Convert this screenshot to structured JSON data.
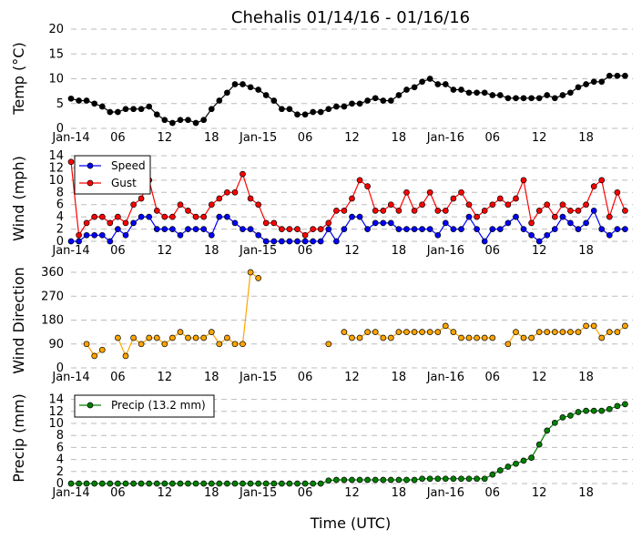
{
  "title": "Chehalis 01/14/16 - 01/16/16",
  "xlabel": "Time (UTC)",
  "x_tick_labels": [
    "Jan-14",
    "06",
    "12",
    "18",
    "Jan-15",
    "06",
    "12",
    "18",
    "Jan-16",
    "06",
    "12",
    "18"
  ],
  "chart_data": [
    {
      "type": "line",
      "ylabel": "Temp (°C)",
      "ylim": [
        0,
        20
      ],
      "yticks": [
        "0",
        "5",
        "10",
        "15",
        "20"
      ],
      "grid": true,
      "x_hours": [
        0,
        1,
        2,
        3,
        4,
        5,
        6,
        7,
        8,
        9,
        10,
        11,
        12,
        13,
        14,
        15,
        16,
        17,
        18,
        19,
        20,
        21,
        22,
        23,
        24,
        25,
        26,
        27,
        28,
        29,
        30,
        31,
        32,
        33,
        34,
        35,
        36,
        37,
        38,
        39,
        40,
        41,
        42,
        43,
        44,
        45,
        46,
        47,
        48,
        49,
        50,
        51,
        52,
        53,
        54,
        55,
        56,
        57,
        58,
        59,
        60,
        61,
        62,
        63,
        64,
        65,
        66,
        67,
        68,
        69,
        70,
        71
      ],
      "series": [
        {
          "color": "#000000",
          "values": [
            6,
            5.6,
            5.6,
            5,
            4.4,
            3.3,
            3.3,
            3.9,
            3.9,
            3.9,
            4.4,
            2.8,
            1.7,
            1.1,
            1.7,
            1.7,
            1.1,
            1.7,
            3.9,
            5.6,
            7.2,
            8.9,
            8.9,
            8.3,
            7.8,
            6.7,
            5.6,
            3.9,
            3.9,
            2.8,
            2.8,
            3.3,
            3.3,
            3.9,
            4.4,
            4.4,
            5,
            5,
            5.6,
            6.1,
            5.6,
            5.6,
            6.7,
            7.8,
            8.3,
            9.4,
            10,
            8.9,
            8.9,
            7.8,
            7.8,
            7.2,
            7.2,
            7.2,
            6.7,
            6.7,
            6.1,
            6.1,
            6.1,
            6.1,
            6.1,
            6.7,
            6.1,
            6.7,
            7.2,
            8.3,
            8.9,
            9.4,
            9.4,
            10.6,
            10.6,
            10.6
          ]
        }
      ]
    },
    {
      "type": "line",
      "ylabel": "Wind (mph)",
      "ylim": [
        0,
        14
      ],
      "yticks": [
        "0",
        "2",
        "4",
        "6",
        "8",
        "10",
        "12",
        "14"
      ],
      "grid": true,
      "legend": "top-left",
      "x_hours": [
        0,
        1,
        2,
        3,
        4,
        5,
        6,
        7,
        8,
        9,
        10,
        11,
        12,
        13,
        14,
        15,
        16,
        17,
        18,
        19,
        20,
        21,
        22,
        23,
        24,
        25,
        26,
        27,
        28,
        29,
        30,
        31,
        32,
        33,
        34,
        35,
        36,
        37,
        38,
        39,
        40,
        41,
        42,
        43,
        44,
        45,
        46,
        47,
        48,
        49,
        50,
        51,
        52,
        53,
        54,
        55,
        56,
        57,
        58,
        59,
        60,
        61,
        62,
        63,
        64,
        65,
        66,
        67,
        68,
        69,
        70,
        71
      ],
      "series": [
        {
          "name": "Speed",
          "color": "#0000ff",
          "values": [
            0,
            0,
            1,
            1,
            1,
            0,
            2,
            1,
            3,
            4,
            4,
            2,
            2,
            2,
            1,
            2,
            2,
            2,
            1,
            4,
            4,
            3,
            2,
            2,
            1,
            0,
            0,
            0,
            0,
            0,
            0,
            0,
            0,
            2,
            0,
            2,
            4,
            4,
            2,
            3,
            3,
            3,
            2,
            2,
            2,
            2,
            2,
            1,
            3,
            2,
            2,
            4,
            2,
            0,
            2,
            2,
            3,
            4,
            2,
            1,
            0,
            1,
            2,
            4,
            3,
            2,
            3,
            5,
            2,
            1,
            2,
            2
          ]
        },
        {
          "name": "Gust",
          "color": "#ff0000",
          "values": [
            13,
            1,
            3,
            4,
            4,
            3,
            4,
            3,
            6,
            7,
            10,
            5,
            4,
            4,
            6,
            5,
            4,
            4,
            6,
            7,
            8,
            8,
            11,
            7,
            6,
            3,
            3,
            2,
            2,
            2,
            1,
            2,
            2,
            3,
            5,
            5,
            7,
            10,
            9,
            5,
            5,
            6,
            5,
            8,
            5,
            6,
            8,
            5,
            5,
            7,
            8,
            6,
            4,
            5,
            6,
            7,
            6,
            7,
            10,
            3,
            5,
            6,
            4,
            6,
            5,
            5,
            6,
            9,
            10,
            4,
            8,
            5
          ]
        }
      ]
    },
    {
      "type": "scatter",
      "ylabel": "Wind Direction",
      "ylim": [
        0,
        360
      ],
      "yticks": [
        "0",
        "90",
        "180",
        "270",
        "360"
      ],
      "grid": true,
      "series": [
        {
          "color": "#ffa500",
          "x_hours": [
            2,
            3,
            4,
            6,
            7,
            8,
            9,
            10,
            11,
            12,
            13,
            14,
            15,
            16,
            17,
            18,
            19,
            20,
            21,
            22,
            23,
            24,
            33,
            35,
            36,
            37,
            38,
            39,
            40,
            41,
            42,
            43,
            44,
            45,
            46,
            47,
            48,
            49,
            50,
            51,
            52,
            53,
            54,
            56,
            57,
            58,
            59,
            60,
            61,
            62,
            63,
            64,
            65,
            66,
            67,
            68,
            69,
            70,
            71
          ],
          "values": [
            90,
            45,
            68,
            113,
            45,
            113,
            90,
            113,
            113,
            90,
            113,
            135,
            113,
            113,
            113,
            135,
            90,
            113,
            90,
            90,
            360,
            338,
            90,
            135,
            113,
            113,
            135,
            135,
            113,
            113,
            135,
            135,
            135,
            135,
            135,
            135,
            158,
            135,
            113,
            113,
            113,
            113,
            113,
            90,
            135,
            113,
            113,
            135,
            135,
            135,
            135,
            135,
            135,
            158,
            158,
            113,
            135,
            135,
            158
          ]
        }
      ]
    },
    {
      "type": "line",
      "ylabel": "Precip (mm)",
      "ylim": [
        0,
        15
      ],
      "yticks": [
        "0",
        "2",
        "4",
        "6",
        "8",
        "10",
        "12",
        "14"
      ],
      "grid": true,
      "legend": "top-left",
      "x_hours": [
        0,
        1,
        2,
        3,
        4,
        5,
        6,
        7,
        8,
        9,
        10,
        11,
        12,
        13,
        14,
        15,
        16,
        17,
        18,
        19,
        20,
        21,
        22,
        23,
        24,
        25,
        26,
        27,
        28,
        29,
        30,
        31,
        32,
        33,
        34,
        35,
        36,
        37,
        38,
        39,
        40,
        41,
        42,
        43,
        44,
        45,
        46,
        47,
        48,
        49,
        50,
        51,
        52,
        53,
        54,
        55,
        56,
        57,
        58,
        59,
        60,
        61,
        62,
        63,
        64,
        65,
        66,
        67,
        68,
        69,
        70,
        71
      ],
      "series": [
        {
          "name": "Precip (13.2 mm)",
          "color": "#008000",
          "values": [
            0,
            0,
            0,
            0,
            0,
            0,
            0,
            0,
            0,
            0,
            0,
            0,
            0,
            0,
            0,
            0,
            0,
            0,
            0,
            0,
            0,
            0,
            0,
            0,
            0,
            0,
            0,
            0,
            0,
            0,
            0,
            0,
            0,
            0.5,
            0.6,
            0.6,
            0.6,
            0.6,
            0.6,
            0.6,
            0.6,
            0.6,
            0.6,
            0.6,
            0.6,
            0.8,
            0.8,
            0.8,
            0.8,
            0.8,
            0.8,
            0.8,
            0.8,
            0.8,
            1.5,
            2.2,
            2.8,
            3.3,
            3.8,
            4.3,
            6.5,
            8.8,
            10.1,
            11,
            11.3,
            11.9,
            12.1,
            12.1,
            12.1,
            12.4,
            12.9,
            13.2
          ]
        }
      ]
    }
  ]
}
